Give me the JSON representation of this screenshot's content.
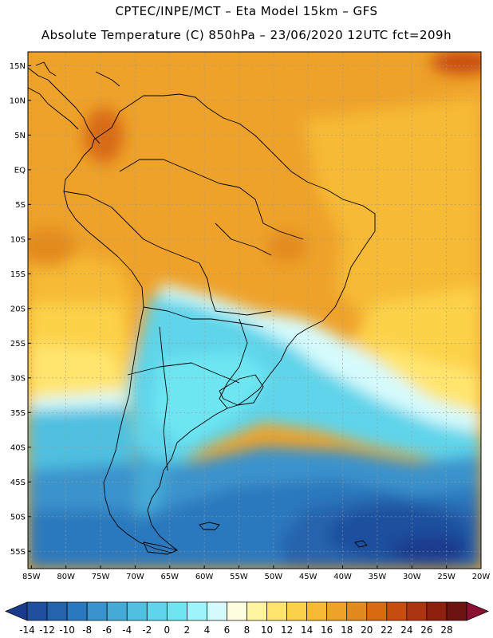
{
  "header": {
    "line1": "CPTEC/INPE/MCT –  Eta Model 15km – GFS",
    "line2": "Absolute Temperature (C) 850hPa – 23/06/2020 12UTC fct=209h"
  },
  "map": {
    "lat_labels": [
      "15N",
      "10N",
      "5N",
      "EQ",
      "5S",
      "10S",
      "15S",
      "20S",
      "25S",
      "30S",
      "35S",
      "40S",
      "45S",
      "50S",
      "55S"
    ],
    "lat_values": [
      15,
      10,
      5,
      0,
      -5,
      -10,
      -15,
      -20,
      -25,
      -30,
      -35,
      -40,
      -45,
      -50,
      -55
    ],
    "lon_labels": [
      "85W",
      "80W",
      "75W",
      "70W",
      "65W",
      "60W",
      "55W",
      "50W",
      "45W",
      "40W",
      "35W",
      "30W",
      "25W",
      "20W"
    ],
    "lon_values": [
      -85,
      -80,
      -75,
      -70,
      -65,
      -60,
      -55,
      -50,
      -45,
      -40,
      -35,
      -30,
      -25,
      -20
    ],
    "extent": {
      "lon_min": -85.5,
      "lon_max": -20,
      "lat_min": -57.5,
      "lat_max": 17
    }
  },
  "colorbar": {
    "tick_labels": [
      "-14",
      "-12",
      "-10",
      "-8",
      "-6",
      "-4",
      "-2",
      "0",
      "2",
      "4",
      "6",
      "8",
      "10",
      "12",
      "14",
      "16",
      "18",
      "20",
      "22",
      "24",
      "26",
      "28"
    ],
    "colors": [
      "#1a3a8c",
      "#1f4f9e",
      "#2563ad",
      "#2a78bd",
      "#3a93cc",
      "#45aad6",
      "#50c0e0",
      "#5fd4ea",
      "#6de6f2",
      "#9ef4fa",
      "#d6fbfd",
      "#fffde0",
      "#fff5a0",
      "#ffe56e",
      "#fcd24a",
      "#f6ba34",
      "#eea22a",
      "#e38a1e",
      "#d86a12",
      "#c74c10",
      "#ad3410",
      "#8e2010",
      "#6e1410",
      "#8a1130"
    ]
  }
}
